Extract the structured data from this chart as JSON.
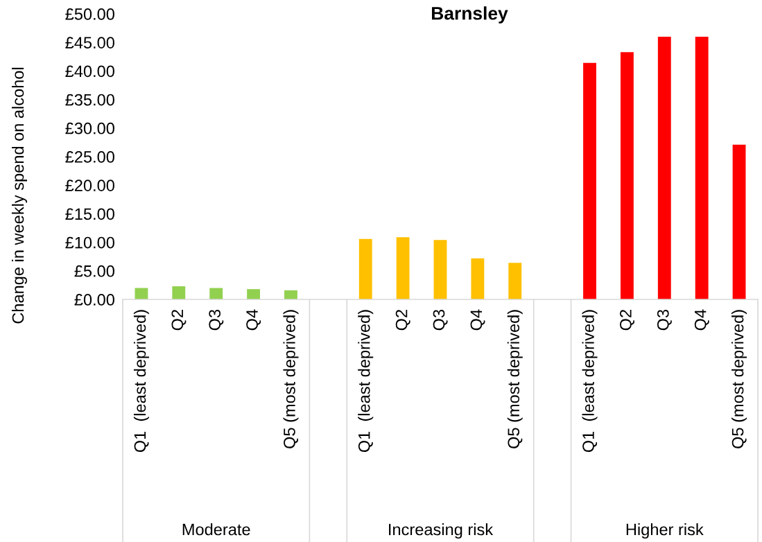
{
  "chart_data": {
    "type": "bar",
    "title": "Barnsley",
    "ylabel": "Change in weekly spend on alcohol",
    "categories": [
      "Q1  (least deprived)",
      "Q2",
      "Q3",
      "Q4",
      "Q5 (most deprived)",
      null,
      "Q1  (least deprived)",
      "Q2",
      "Q3",
      "Q4",
      "Q5 (most deprived)",
      null,
      "Q1  (least deprived)",
      "Q2",
      "Q3",
      "Q4",
      "Q5 (most deprived)"
    ],
    "values": [
      2.0,
      2.3,
      2.0,
      1.8,
      1.6,
      null,
      10.6,
      10.9,
      10.4,
      7.2,
      6.4,
      null,
      41.4,
      43.3,
      46.0,
      46.0,
      27.1
    ],
    "colors": [
      "#92d050",
      "#92d050",
      "#92d050",
      "#92d050",
      "#92d050",
      null,
      "#ffc000",
      "#ffc000",
      "#ffc000",
      "#ffc000",
      "#ffc000",
      null,
      "#ff0000",
      "#ff0000",
      "#ff0000",
      "#ff0000",
      "#ff0000"
    ],
    "annotations": [
      "Moderate",
      "Increasing risk",
      "Higher risk"
    ],
    "ylim": [
      0,
      50
    ],
    "yticks": [
      {
        "value": 0,
        "label": "£0.00"
      },
      {
        "value": 5,
        "label": "£5.00"
      },
      {
        "value": 10,
        "label": "£10.00"
      },
      {
        "value": 15,
        "label": "£15.00"
      },
      {
        "value": 20,
        "label": "£20.00"
      },
      {
        "value": 25,
        "label": "£25.00"
      },
      {
        "value": 30,
        "label": "£30.00"
      },
      {
        "value": 35,
        "label": "£35.00"
      },
      {
        "value": 40,
        "label": "£40.00"
      },
      {
        "value": 45,
        "label": "£45.00"
      },
      {
        "value": 50,
        "label": "£50.00"
      }
    ],
    "grid": false
  }
}
